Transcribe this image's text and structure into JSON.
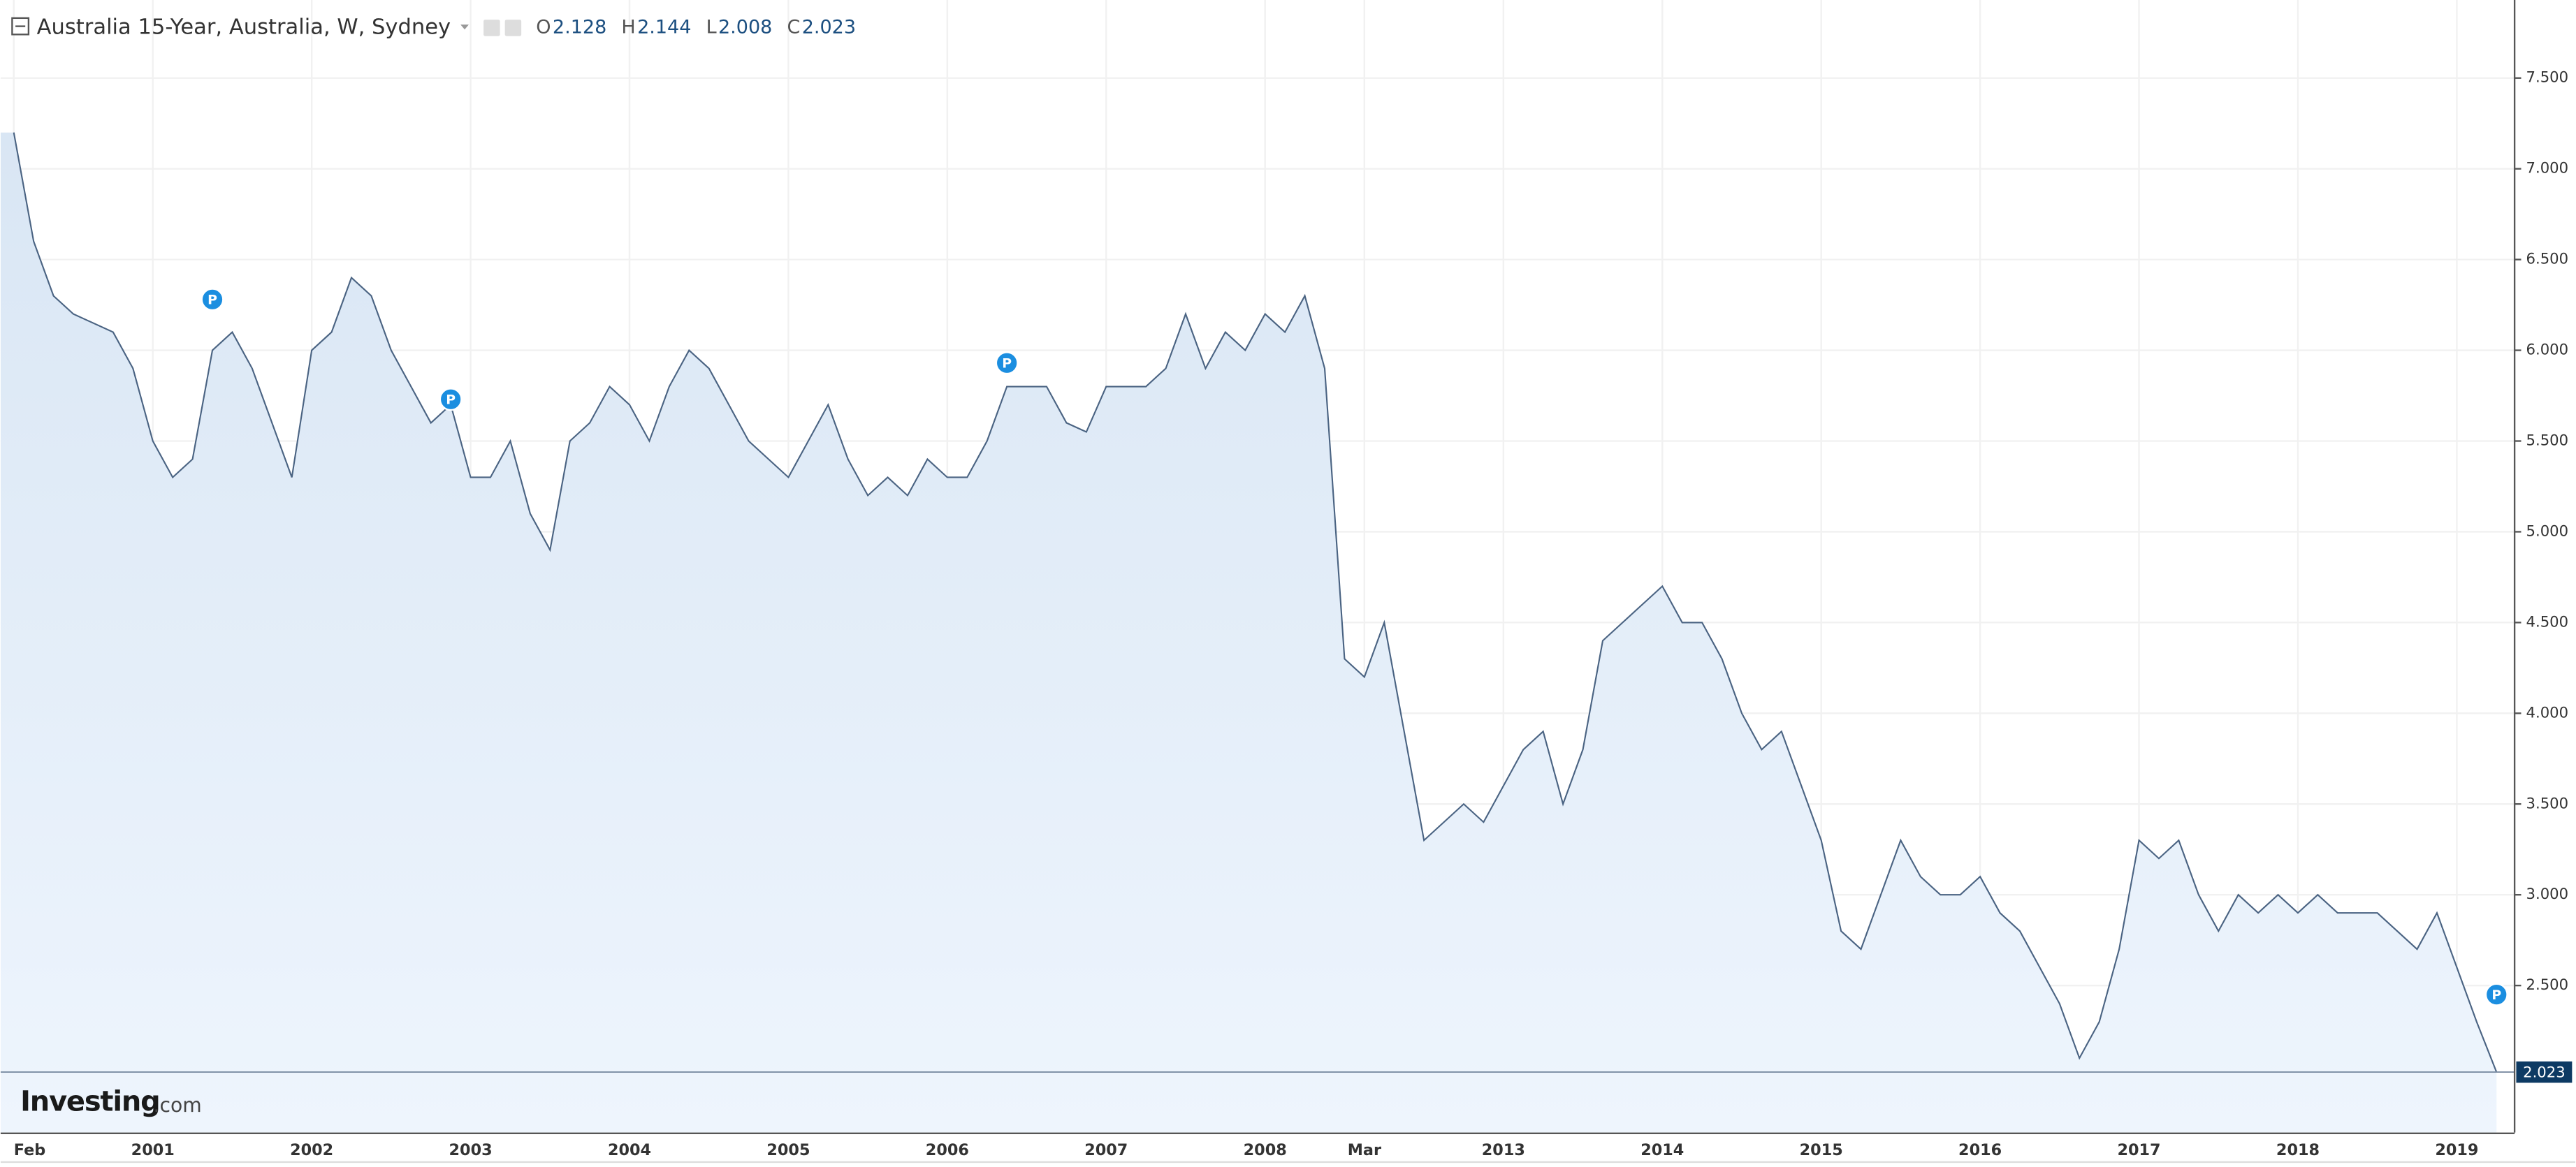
{
  "chart_data": {
    "type": "area",
    "title": "Australia 15-Year, Australia, W, Sydney",
    "ohlc": [
      {
        "key": "O",
        "value": 2.128
      },
      {
        "key": "H",
        "value": 2.144
      },
      {
        "key": "L",
        "value": 2.008
      },
      {
        "key": "C",
        "value": 2.023
      }
    ],
    "categories": [
      "Feb",
      null,
      null,
      null,
      null,
      null,
      null,
      "2001",
      null,
      null,
      null,
      null,
      null,
      null,
      null,
      "2002",
      null,
      null,
      null,
      null,
      null,
      null,
      null,
      "2003",
      null,
      null,
      null,
      null,
      null,
      null,
      null,
      "2004",
      null,
      null,
      null,
      null,
      null,
      null,
      null,
      "2005",
      null,
      null,
      null,
      null,
      null,
      null,
      null,
      "2006",
      null,
      null,
      null,
      null,
      null,
      null,
      null,
      "2007",
      null,
      null,
      null,
      null,
      null,
      null,
      null,
      "2008",
      null,
      null,
      null,
      null,
      "Mar",
      null,
      null,
      null,
      null,
      null,
      null,
      "2013",
      null,
      null,
      null,
      null,
      null,
      null,
      null,
      "2014",
      null,
      null,
      null,
      null,
      null,
      null,
      null,
      "2015",
      null,
      null,
      null,
      null,
      null,
      null,
      null,
      "2016",
      null,
      null,
      null,
      null,
      null,
      null,
      null,
      "2017",
      null,
      null,
      null,
      null,
      null,
      null,
      null,
      "2018",
      null,
      null,
      null,
      null,
      null,
      null,
      null,
      "2019",
      null,
      null
    ],
    "values": [
      7.2,
      6.6,
      6.3,
      6.2,
      6.15,
      6.1,
      5.9,
      5.5,
      5.3,
      5.4,
      6.0,
      6.1,
      5.9,
      5.6,
      5.3,
      6.0,
      6.1,
      6.4,
      6.3,
      6.0,
      5.8,
      5.6,
      5.7,
      5.3,
      5.3,
      5.5,
      5.1,
      4.9,
      5.5,
      5.6,
      5.8,
      5.7,
      5.5,
      5.8,
      6.0,
      5.9,
      5.7,
      5.5,
      5.4,
      5.3,
      5.5,
      5.7,
      5.4,
      5.2,
      5.3,
      5.2,
      5.4,
      5.3,
      5.3,
      5.5,
      5.8,
      5.8,
      5.8,
      5.6,
      5.55,
      5.8,
      5.8,
      5.8,
      5.9,
      6.2,
      5.9,
      6.1,
      6.0,
      6.2,
      6.1,
      6.3,
      5.9,
      4.3,
      4.2,
      4.5,
      3.9,
      3.3,
      3.4,
      3.5,
      3.4,
      3.6,
      3.8,
      3.9,
      3.5,
      3.8,
      4.4,
      4.5,
      4.6,
      4.7,
      4.5,
      4.5,
      4.3,
      4.0,
      3.8,
      3.9,
      3.6,
      3.3,
      2.8,
      2.7,
      3.0,
      3.3,
      3.1,
      3.0,
      3.0,
      3.1,
      2.9,
      2.8,
      2.6,
      2.4,
      2.1,
      2.3,
      2.7,
      3.3,
      3.2,
      3.3,
      3.0,
      2.8,
      3.0,
      2.9,
      3.0,
      2.9,
      3.0,
      2.9,
      2.9,
      2.9,
      2.8,
      2.7,
      2.9,
      2.6,
      2.3,
      2.023
    ],
    "color": "#4a6382",
    "ylim": [
      1.69,
      7.93
    ],
    "yticks": [
      {
        "value": 2.5,
        "label": "2.500"
      },
      {
        "value": 3.0,
        "label": "3.000"
      },
      {
        "value": 3.5,
        "label": "3.500"
      },
      {
        "value": 4.0,
        "label": "4.000"
      },
      {
        "value": 4.5,
        "label": "4.500"
      },
      {
        "value": 5.0,
        "label": "5.000"
      },
      {
        "value": 5.5,
        "label": "5.500"
      },
      {
        "value": 6.0,
        "label": "6.000"
      },
      {
        "value": 6.5,
        "label": "6.500"
      },
      {
        "value": 7.0,
        "label": "7.000"
      },
      {
        "value": 7.5,
        "label": "7.500"
      }
    ],
    "grid": true,
    "markers": [
      {
        "label": "P",
        "at": 10,
        "value": 6.28
      },
      {
        "label": "P",
        "at": 22,
        "value": 5.73
      },
      {
        "label": "P",
        "at": 50,
        "value": 5.93
      },
      {
        "label": "P",
        "at": 125,
        "value": 2.45
      }
    ],
    "branding": [
      "Investing",
      ".com"
    ]
  }
}
